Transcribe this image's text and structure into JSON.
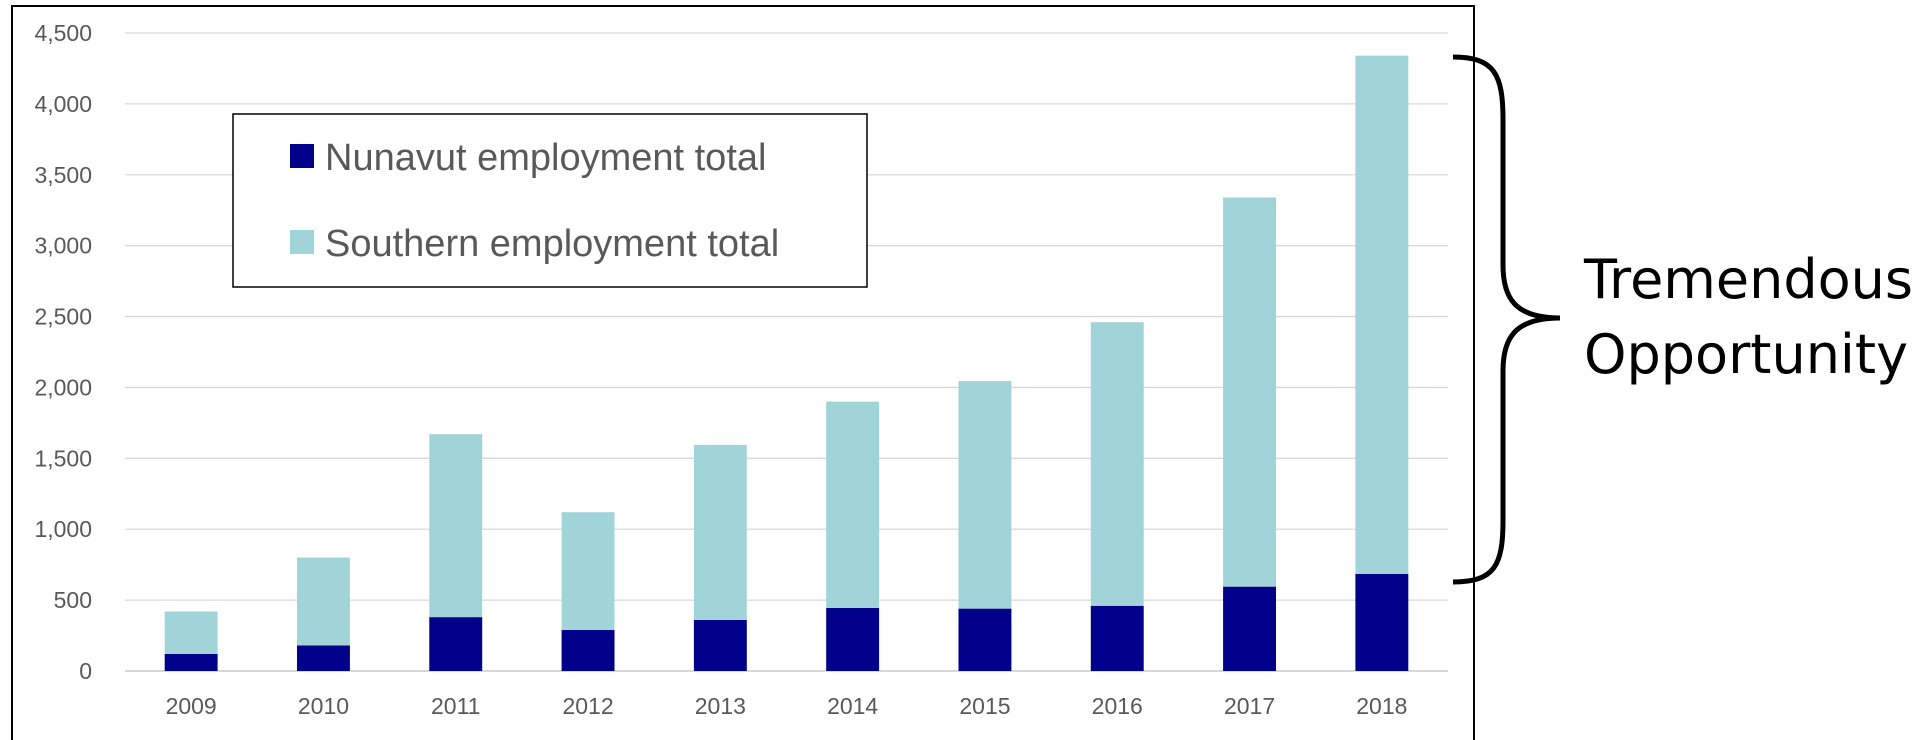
{
  "chart_data": {
    "type": "bar",
    "stacked": true,
    "categories": [
      "2009",
      "2010",
      "2011",
      "2012",
      "2013",
      "2014",
      "2015",
      "2016",
      "2017",
      "2018"
    ],
    "series": [
      {
        "name": "Nunavut employment total",
        "color": "#00008B",
        "values": [
          120,
          180,
          380,
          290,
          360,
          445,
          440,
          460,
          595,
          685
        ]
      },
      {
        "name": "Southern employment total",
        "color": "#A1D4D8",
        "values": [
          300,
          620,
          1290,
          830,
          1235,
          1455,
          1605,
          2000,
          2745,
          3655
        ]
      }
    ],
    "ylim": [
      0,
      4500
    ],
    "yticks": [
      "0",
      "500",
      "1,000",
      "1,500",
      "2,000",
      "2,500",
      "3,000",
      "3,500",
      "4,000",
      "4,500"
    ],
    "grid": true,
    "legend_position": "top-left",
    "annotation": {
      "line1": "Tremendous",
      "line2": "Opportunity"
    }
  }
}
